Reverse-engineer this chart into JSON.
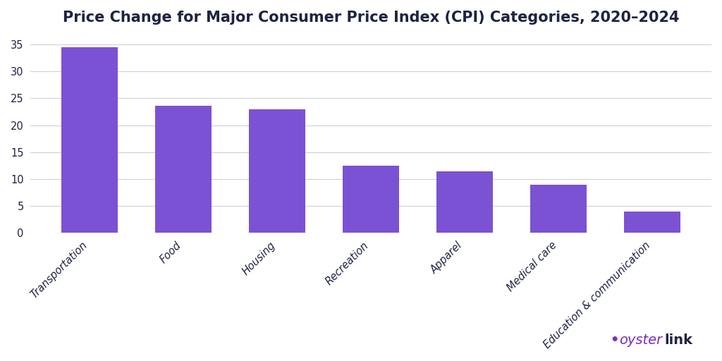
{
  "title": "Price Change for Major Consumer Price Index (CPI) Categories, 2020–2024",
  "categories": [
    "Transportation",
    "Food",
    "Housing",
    "Recreation",
    "Apparel",
    "Medical care",
    "Education & communication"
  ],
  "values": [
    34.5,
    23.6,
    23.0,
    12.5,
    11.4,
    9.0,
    4.0
  ],
  "bar_color": "#7B52D3",
  "background_color": "#ffffff",
  "ylim": [
    0,
    37
  ],
  "yticks": [
    0,
    5,
    10,
    15,
    20,
    25,
    30,
    35
  ],
  "grid_color": "#d0d0d0",
  "title_fontsize": 15,
  "tick_label_fontsize": 10.5,
  "axis_label_color": "#1e2342",
  "oyster_color": "#7B2FBE",
  "link_color": "#1e2342"
}
